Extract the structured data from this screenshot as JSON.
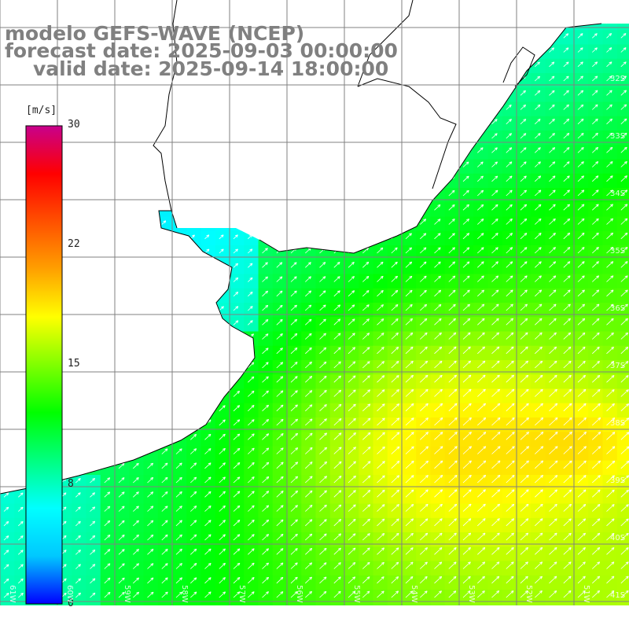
{
  "title": {
    "model": "modelo GEFS-WAVE (NCEP)",
    "forecast": "forecast date: 2025-09-03 00:00:00",
    "valid": "valid date: 2025-09-14 18:00:00"
  },
  "colorbar": {
    "unit": "[m/s]",
    "ticks": [
      "30",
      "22",
      "15",
      "8",
      "0"
    ],
    "tick_values": [
      30,
      22,
      15,
      8,
      0
    ],
    "stops": [
      "#0000ff",
      "#00c8ff",
      "#00ffff",
      "#00ff80",
      "#00ff00",
      "#80ff00",
      "#ffff00",
      "#ffa000",
      "#ff5000",
      "#ff0000",
      "#c8008c"
    ]
  },
  "lat_labels": [
    "32S",
    "33S",
    "34S",
    "35S",
    "36S",
    "37S",
    "38S",
    "39S",
    "40S",
    "41S"
  ],
  "lon_labels": [
    "61W",
    "60W",
    "59W",
    "58W",
    "57W",
    "56W",
    "55W",
    "54W",
    "53W",
    "52W",
    "51W"
  ],
  "field": {
    "variable": "wind speed",
    "units": "m/s",
    "min": 0,
    "max": 30,
    "vector_direction": "toward NE"
  },
  "colors": {
    "land": "#ffffff",
    "coastline": "#000000",
    "grid": "#808080",
    "vectors": "#ffffff"
  }
}
